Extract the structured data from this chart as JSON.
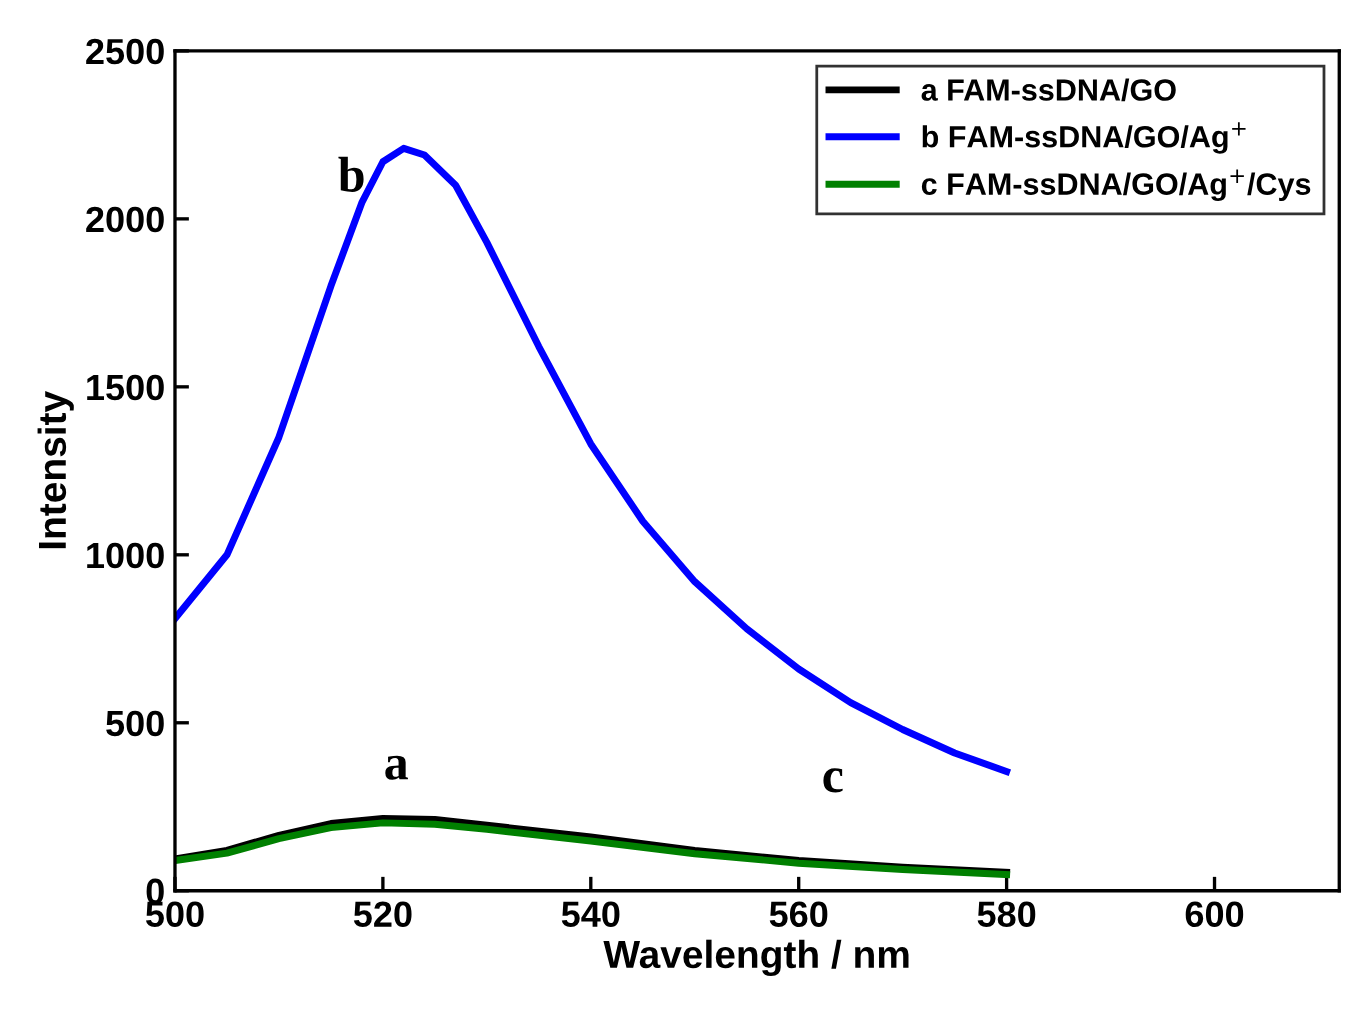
{
  "chart_data": {
    "type": "line",
    "xlabel": "Wavelength / nm",
    "ylabel": "Intensity",
    "xlim": [
      500,
      612
    ],
    "ylim": [
      0,
      2500
    ],
    "xticks": [
      500,
      520,
      540,
      560,
      580,
      600
    ],
    "yticks": [
      0,
      500,
      1000,
      1500,
      2000,
      2500
    ],
    "grid": false,
    "legend": "top right",
    "marker": "none",
    "line_style": "solid",
    "series": [
      {
        "name": "a FAM-ssDNA/GO",
        "color": "#000000",
        "x": [
          500,
          505,
          510,
          515,
          520,
          525,
          530,
          540,
          550,
          560,
          570,
          580
        ],
        "values": [
          95,
          120,
          165,
          200,
          215,
          212,
          195,
          160,
          120,
          90,
          70,
          55
        ]
      },
      {
        "name": "b FAM-ssDNA/GO/Ag$^{+}$",
        "color": "#0000ff",
        "x": [
          500,
          505,
          510,
          515,
          518,
          520,
          522,
          524,
          527,
          530,
          535,
          540,
          545,
          550,
          555,
          560,
          565,
          570,
          575,
          580
        ],
        "values": [
          810,
          1000,
          1350,
          1800,
          2050,
          2170,
          2210,
          2190,
          2100,
          1930,
          1620,
          1330,
          1100,
          920,
          780,
          660,
          560,
          480,
          410,
          355
        ]
      },
      {
        "name": "c FAM-ssDNA/GO/Ag$^{+}$/Cys",
        "color": "#008000",
        "x": [
          500,
          505,
          510,
          515,
          520,
          525,
          530,
          540,
          550,
          560,
          570,
          580
        ],
        "values": [
          90,
          112,
          155,
          188,
          202,
          198,
          183,
          148,
          110,
          82,
          63,
          48
        ]
      }
    ],
    "annotations": [
      {
        "text": "b",
        "x": 517,
        "y": 2050
      },
      "a",
      "c"
    ]
  }
}
